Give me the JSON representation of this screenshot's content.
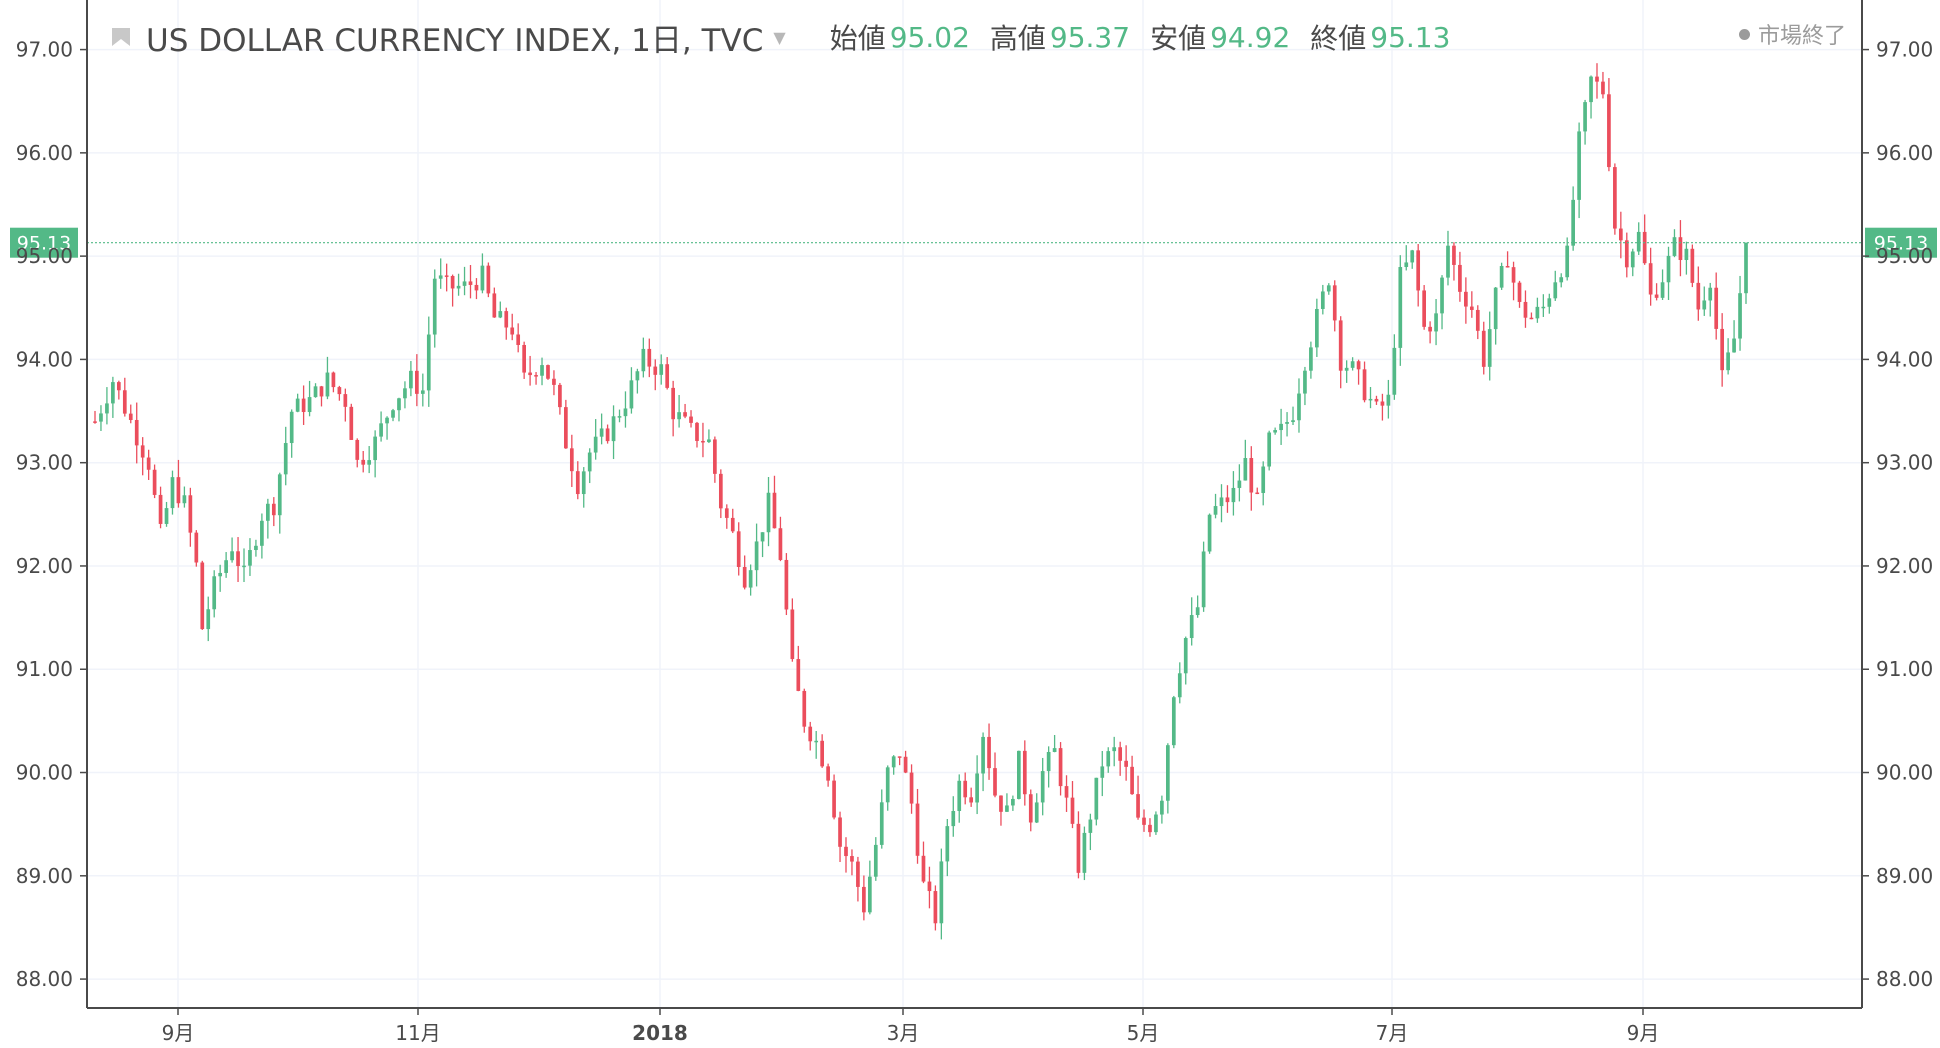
{
  "header": {
    "title": "US DOLLAR CURRENCY INDEX, 1日, TVC",
    "open_label": "始値",
    "open_value": "95.02",
    "high_label": "高値",
    "high_value": "95.37",
    "low_label": "安値",
    "low_value": "94.92",
    "close_label": "終値",
    "close_value": "95.13",
    "market_status": "市場終了"
  },
  "colors": {
    "up": "#53b987",
    "down": "#eb4d5c",
    "grid": "#f0f3fa",
    "axis": "#4a4a4a"
  },
  "chart_data": {
    "type": "candlestick",
    "title": "US DOLLAR CURRENCY INDEX, 1日, TVC",
    "last_price": "95.13",
    "ylim": [
      87.72,
      97.48
    ],
    "y_ticks": [
      "88.00",
      "89.00",
      "90.00",
      "91.00",
      "92.00",
      "93.00",
      "94.00",
      "95.00",
      "96.00",
      "97.00"
    ],
    "x_ticks": [
      "9月",
      "11月",
      "2018",
      "3月",
      "5月",
      "7月",
      "9月"
    ],
    "grid": true,
    "waypoints": [
      [
        0,
        93.4
      ],
      [
        3,
        93.8
      ],
      [
        6,
        93.4
      ],
      [
        9,
        93.0
      ],
      [
        11,
        92.3
      ],
      [
        13,
        92.8
      ],
      [
        15,
        92.6
      ],
      [
        17,
        92.0
      ],
      [
        18,
        91.4
      ],
      [
        20,
        91.8
      ],
      [
        23,
        92.2
      ],
      [
        25,
        91.9
      ],
      [
        28,
        92.5
      ],
      [
        30,
        92.6
      ],
      [
        33,
        93.5
      ],
      [
        36,
        93.6
      ],
      [
        39,
        93.8
      ],
      [
        42,
        93.6
      ],
      [
        44,
        93.0
      ],
      [
        47,
        93.2
      ],
      [
        50,
        93.6
      ],
      [
        53,
        93.8
      ],
      [
        55,
        93.7
      ],
      [
        57,
        94.8
      ],
      [
        59,
        94.7
      ],
      [
        62,
        94.7
      ],
      [
        65,
        94.8
      ],
      [
        67,
        94.4
      ],
      [
        70,
        94.3
      ],
      [
        72,
        93.8
      ],
      [
        75,
        94.0
      ],
      [
        77,
        93.7
      ],
      [
        79,
        93.2
      ],
      [
        81,
        92.8
      ],
      [
        83,
        93.1
      ],
      [
        86,
        93.3
      ],
      [
        89,
        93.6
      ],
      [
        92,
        94.0
      ],
      [
        95,
        93.9
      ],
      [
        97,
        93.5
      ],
      [
        100,
        93.3
      ],
      [
        103,
        93.2
      ],
      [
        105,
        92.6
      ],
      [
        107,
        92.3
      ],
      [
        109,
        91.9
      ],
      [
        111,
        92.2
      ],
      [
        113,
        92.6
      ],
      [
        115,
        92.1
      ],
      [
        117,
        91.0
      ],
      [
        119,
        90.5
      ],
      [
        121,
        90.3
      ],
      [
        123,
        90.0
      ],
      [
        125,
        89.3
      ],
      [
        127,
        89.1
      ],
      [
        129,
        88.7
      ],
      [
        131,
        89.3
      ],
      [
        133,
        90.0
      ],
      [
        135,
        90.2
      ],
      [
        137,
        89.7
      ],
      [
        139,
        88.9
      ],
      [
        141,
        88.6
      ],
      [
        143,
        89.5
      ],
      [
        145,
        89.9
      ],
      [
        147,
        89.8
      ],
      [
        149,
        90.4
      ],
      [
        151,
        89.8
      ],
      [
        153,
        89.6
      ],
      [
        155,
        90.1
      ],
      [
        157,
        89.6
      ],
      [
        159,
        90.0
      ],
      [
        161,
        90.2
      ],
      [
        163,
        89.7
      ],
      [
        165,
        89.1
      ],
      [
        167,
        89.6
      ],
      [
        169,
        90.1
      ],
      [
        171,
        90.2
      ],
      [
        173,
        90.0
      ],
      [
        175,
        89.5
      ],
      [
        177,
        89.5
      ],
      [
        179,
        89.8
      ],
      [
        181,
        90.8
      ],
      [
        183,
        91.3
      ],
      [
        185,
        91.6
      ],
      [
        187,
        92.5
      ],
      [
        189,
        92.6
      ],
      [
        191,
        92.7
      ],
      [
        193,
        93.0
      ],
      [
        195,
        92.6
      ],
      [
        197,
        93.2
      ],
      [
        199,
        93.3
      ],
      [
        201,
        93.5
      ],
      [
        203,
        94.0
      ],
      [
        205,
        94.4
      ],
      [
        207,
        94.8
      ],
      [
        209,
        94.0
      ],
      [
        211,
        93.9
      ],
      [
        213,
        93.7
      ],
      [
        215,
        93.5
      ],
      [
        217,
        93.6
      ],
      [
        219,
        94.8
      ],
      [
        221,
        95.0
      ],
      [
        223,
        94.3
      ],
      [
        225,
        94.4
      ],
      [
        227,
        95.1
      ],
      [
        229,
        94.7
      ],
      [
        231,
        94.5
      ],
      [
        233,
        94.0
      ],
      [
        235,
        94.6
      ],
      [
        237,
        95.0
      ],
      [
        239,
        94.5
      ],
      [
        241,
        94.4
      ],
      [
        243,
        94.5
      ],
      [
        245,
        94.8
      ],
      [
        247,
        95.0
      ],
      [
        249,
        96.1
      ],
      [
        251,
        96.7
      ],
      [
        253,
        96.6
      ],
      [
        255,
        95.3
      ],
      [
        257,
        95.0
      ],
      [
        259,
        95.2
      ],
      [
        261,
        94.6
      ],
      [
        263,
        94.8
      ],
      [
        265,
        95.1
      ],
      [
        267,
        95.0
      ],
      [
        269,
        94.5
      ],
      [
        271,
        94.8
      ],
      [
        273,
        93.8
      ],
      [
        275,
        94.2
      ],
      [
        277,
        95.1
      ]
    ]
  }
}
